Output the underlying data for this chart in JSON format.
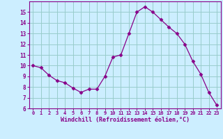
{
  "x": [
    0,
    1,
    2,
    3,
    4,
    5,
    6,
    7,
    8,
    9,
    10,
    11,
    12,
    13,
    14,
    15,
    16,
    17,
    18,
    19,
    20,
    21,
    22,
    23
  ],
  "y": [
    10.0,
    9.8,
    9.1,
    8.6,
    8.4,
    7.9,
    7.5,
    7.8,
    7.8,
    9.0,
    10.8,
    11.0,
    13.0,
    15.0,
    15.5,
    15.0,
    14.3,
    13.6,
    13.0,
    12.0,
    10.4,
    9.2,
    7.5,
    6.3
  ],
  "xlabel": "Windchill (Refroidissement éolien,°C)",
  "ylim": [
    6,
    16
  ],
  "xlim": [
    -0.5,
    23.5
  ],
  "yticks": [
    6,
    7,
    8,
    9,
    10,
    11,
    12,
    13,
    14,
    15
  ],
  "xticks": [
    0,
    1,
    2,
    3,
    4,
    5,
    6,
    7,
    8,
    9,
    10,
    11,
    12,
    13,
    14,
    15,
    16,
    17,
    18,
    19,
    20,
    21,
    22,
    23
  ],
  "line_color": "#880088",
  "marker": "D",
  "marker_size": 2.5,
  "bg_color": "#cceeff",
  "grid_color": "#99cccc",
  "label_color": "#880088",
  "tick_color": "#880088",
  "axis_color": "#880088"
}
